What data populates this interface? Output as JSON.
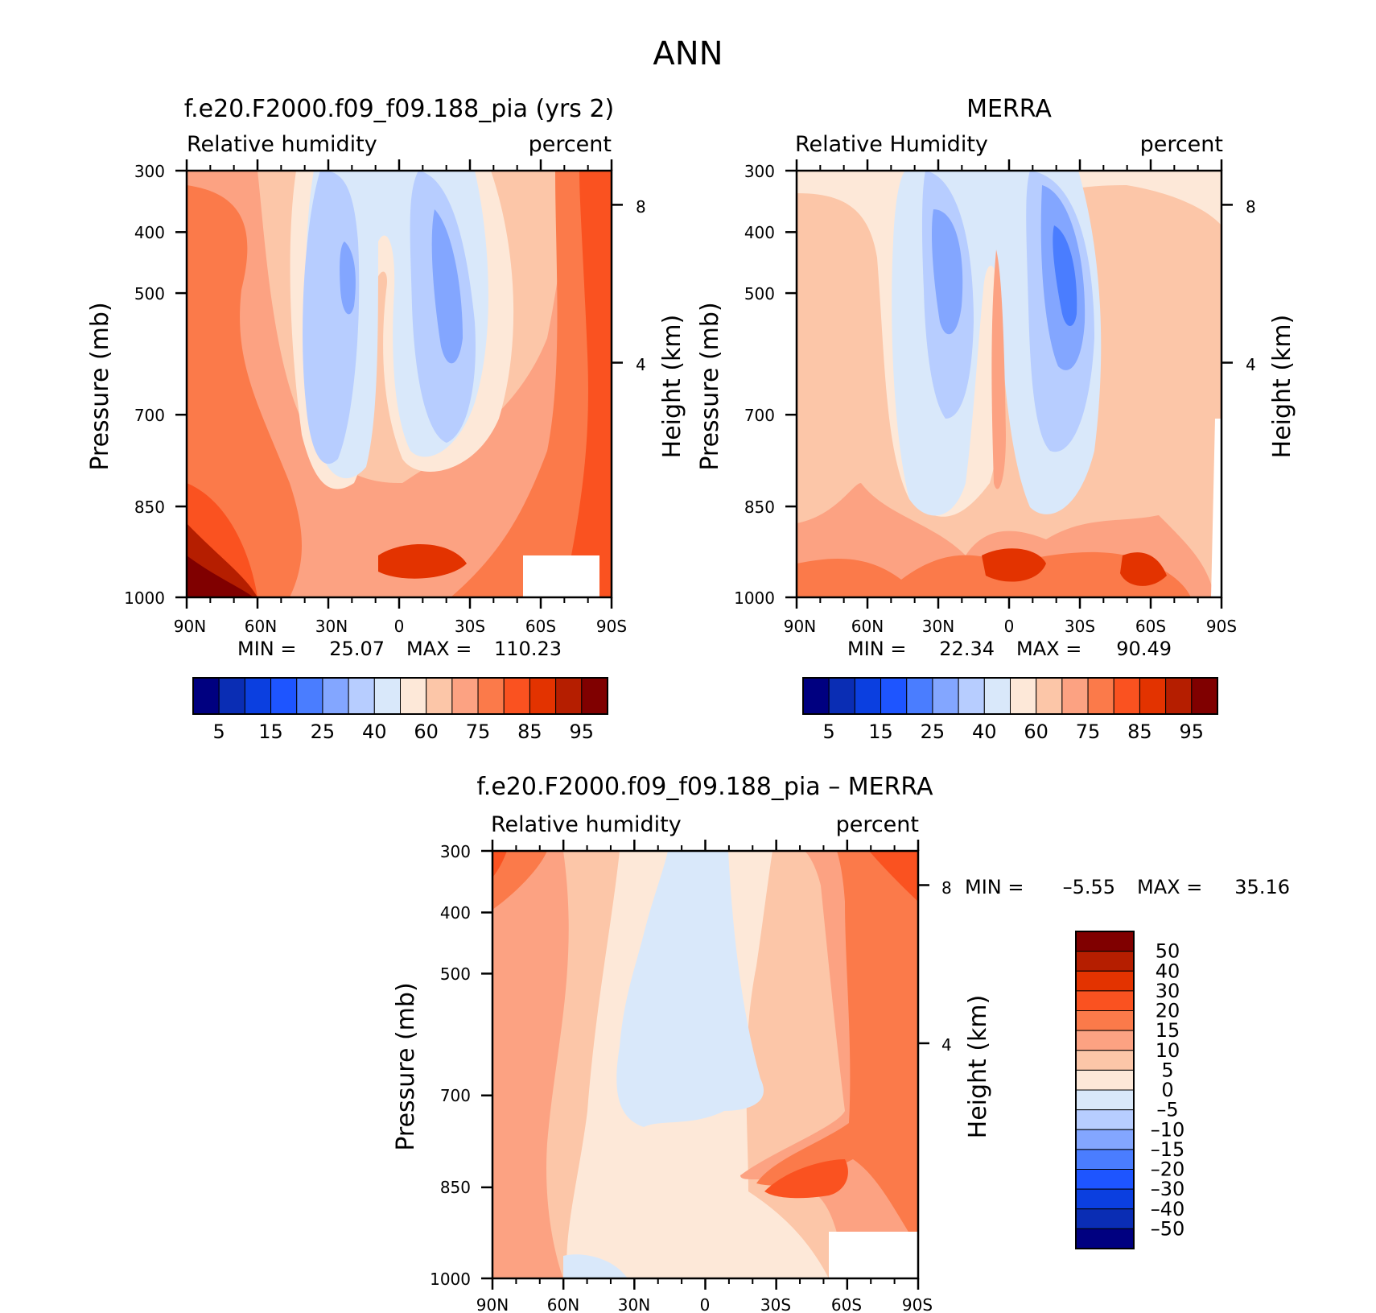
{
  "figure_title": "ANN",
  "chart_data": [
    {
      "type": "contour",
      "id": "model",
      "title": "f.e20.F2000.f09_f09.188_pia (yrs 2)",
      "variable": "Relative humidity",
      "units": "percent",
      "ylabel": "Pressure (mb)",
      "ylabel2": "Height (km)",
      "x_ticks": [
        "90N",
        "60N",
        "30N",
        "0",
        "30S",
        "60S",
        "90S"
      ],
      "y_ticks": [
        "300",
        "400",
        "500",
        "700",
        "850",
        "1000"
      ],
      "y2_ticks": [
        "8",
        "4"
      ],
      "min_label": "MIN =",
      "min_value": "25.07",
      "max_label": "MAX =",
      "max_value": "110.23",
      "colorbar": {
        "orientation": "horizontal",
        "levels": [
          "5",
          "15",
          "25",
          "40",
          "60",
          "75",
          "85",
          "95"
        ],
        "colors": [
          "#000080",
          "#0a2db4",
          "#0b3fe0",
          "#1e55ff",
          "#4a7dff",
          "#83a6ff",
          "#b7cdff",
          "#d9e8fa",
          "#fde8d8",
          "#fcc6a8",
          "#fca282",
          "#fb7a4a",
          "#fa5220",
          "#e33300",
          "#b51e00",
          "#800000"
        ]
      }
    },
    {
      "type": "contour",
      "id": "obs",
      "title": "MERRA",
      "variable": "Relative Humidity",
      "units": "percent",
      "ylabel": "Pressure (mb)",
      "ylabel2": "Height (km)",
      "x_ticks": [
        "90N",
        "60N",
        "30N",
        "0",
        "30S",
        "60S",
        "90S"
      ],
      "y_ticks": [
        "300",
        "400",
        "500",
        "700",
        "850",
        "1000"
      ],
      "y2_ticks": [
        "8",
        "4"
      ],
      "min_label": "MIN =",
      "min_value": "22.34",
      "max_label": "MAX =",
      "max_value": "90.49",
      "colorbar": {
        "orientation": "horizontal",
        "levels": [
          "5",
          "15",
          "25",
          "40",
          "60",
          "75",
          "85",
          "95"
        ],
        "colors": [
          "#000080",
          "#0a2db4",
          "#0b3fe0",
          "#1e55ff",
          "#4a7dff",
          "#83a6ff",
          "#b7cdff",
          "#d9e8fa",
          "#fde8d8",
          "#fcc6a8",
          "#fca282",
          "#fb7a4a",
          "#fa5220",
          "#e33300",
          "#b51e00",
          "#800000"
        ]
      }
    },
    {
      "type": "contour",
      "id": "diff",
      "title": "f.e20.F2000.f09_f09.188_pia – MERRA",
      "variable": "Relative humidity",
      "units": "percent",
      "ylabel": "Pressure (mb)",
      "ylabel2": "Height (km)",
      "x_ticks": [
        "90N",
        "60N",
        "30N",
        "0",
        "30S",
        "60S",
        "90S"
      ],
      "y_ticks": [
        "300",
        "400",
        "500",
        "700",
        "850",
        "1000"
      ],
      "y2_ticks": [
        "8",
        "4"
      ],
      "min_label": "MIN =",
      "min_value": "–5.55",
      "max_label": "MAX =",
      "max_value": "35.16",
      "colorbar": {
        "orientation": "vertical",
        "levels": [
          "50",
          "40",
          "30",
          "20",
          "15",
          "10",
          "5",
          "0",
          "–5",
          "–10",
          "–15",
          "–20",
          "–30",
          "–40",
          "–50"
        ],
        "colors": [
          "#800000",
          "#b51e00",
          "#e33300",
          "#fa5220",
          "#fb7a4a",
          "#fca282",
          "#fcc6a8",
          "#fde8d8",
          "#d9e8fa",
          "#b7cdff",
          "#83a6ff",
          "#4a7dff",
          "#1e55ff",
          "#0b3fe0",
          "#0a2db4",
          "#000080"
        ]
      }
    }
  ]
}
